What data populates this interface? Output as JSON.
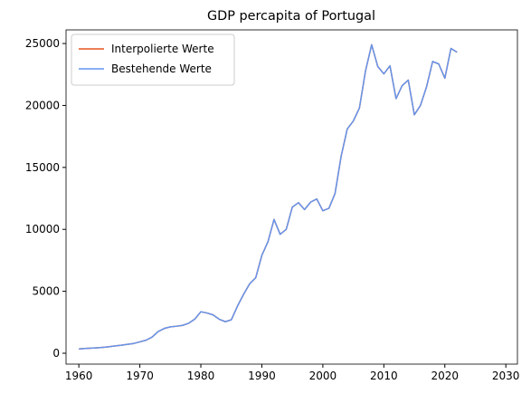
{
  "chart_data": {
    "type": "line",
    "title": "GDP percapita of Portugal",
    "x": [
      1960,
      1961,
      1962,
      1963,
      1964,
      1965,
      1966,
      1967,
      1968,
      1969,
      1970,
      1971,
      1972,
      1973,
      1974,
      1975,
      1976,
      1977,
      1978,
      1979,
      1980,
      1981,
      1982,
      1983,
      1984,
      1985,
      1986,
      1987,
      1988,
      1989,
      1990,
      1991,
      1992,
      1993,
      1994,
      1995,
      1996,
      1997,
      1998,
      1999,
      2000,
      2001,
      2002,
      2003,
      2004,
      2005,
      2006,
      2007,
      2008,
      2009,
      2010,
      2011,
      2012,
      2013,
      2014,
      2015,
      2016,
      2017,
      2018,
      2019,
      2020,
      2021,
      2022
    ],
    "series": [
      {
        "name": "Interpolierte Werte",
        "color": "#e8541e",
        "values": [
          350,
          380,
          410,
          440,
          480,
          530,
          590,
          650,
          720,
          790,
          920,
          1050,
          1300,
          1750,
          2000,
          2130,
          2180,
          2250,
          2420,
          2750,
          3350,
          3250,
          3100,
          2750,
          2550,
          2700,
          3800,
          4750,
          5600,
          6100,
          7900,
          9000,
          10800,
          9600,
          10000,
          11800,
          12150,
          11600,
          12200,
          12450,
          11500,
          11700,
          12900,
          15900,
          18100,
          18750,
          19800,
          22800,
          24900,
          23150,
          22550,
          23200,
          20550,
          21600,
          22050,
          19250,
          20000,
          21500,
          23550,
          23350,
          22200,
          24600,
          24300
        ]
      },
      {
        "name": "Bestehende Werte",
        "color": "#6495ed",
        "values": [
          350,
          380,
          410,
          440,
          480,
          530,
          590,
          650,
          720,
          790,
          920,
          1050,
          1300,
          1750,
          2000,
          2130,
          2180,
          2250,
          2420,
          2750,
          3350,
          3250,
          3100,
          2750,
          2550,
          2700,
          3800,
          4750,
          5600,
          6100,
          7900,
          9000,
          10800,
          9600,
          10000,
          11800,
          12150,
          11600,
          12200,
          12450,
          11500,
          11700,
          12900,
          15900,
          18100,
          18750,
          19800,
          22800,
          24900,
          23150,
          22550,
          23200,
          20550,
          21600,
          22050,
          19250,
          20000,
          21500,
          23550,
          23350,
          22200,
          24600,
          24300
        ]
      }
    ],
    "xlim": [
      1957.9,
      2031.9
    ],
    "xticks": [
      1960,
      1970,
      1980,
      1990,
      2000,
      2010,
      2020,
      2030
    ],
    "ylim": [
      -877,
      26100
    ],
    "yticks": [
      0,
      5000,
      10000,
      15000,
      20000,
      25000
    ],
    "legend": "upper left",
    "grid": false
  }
}
